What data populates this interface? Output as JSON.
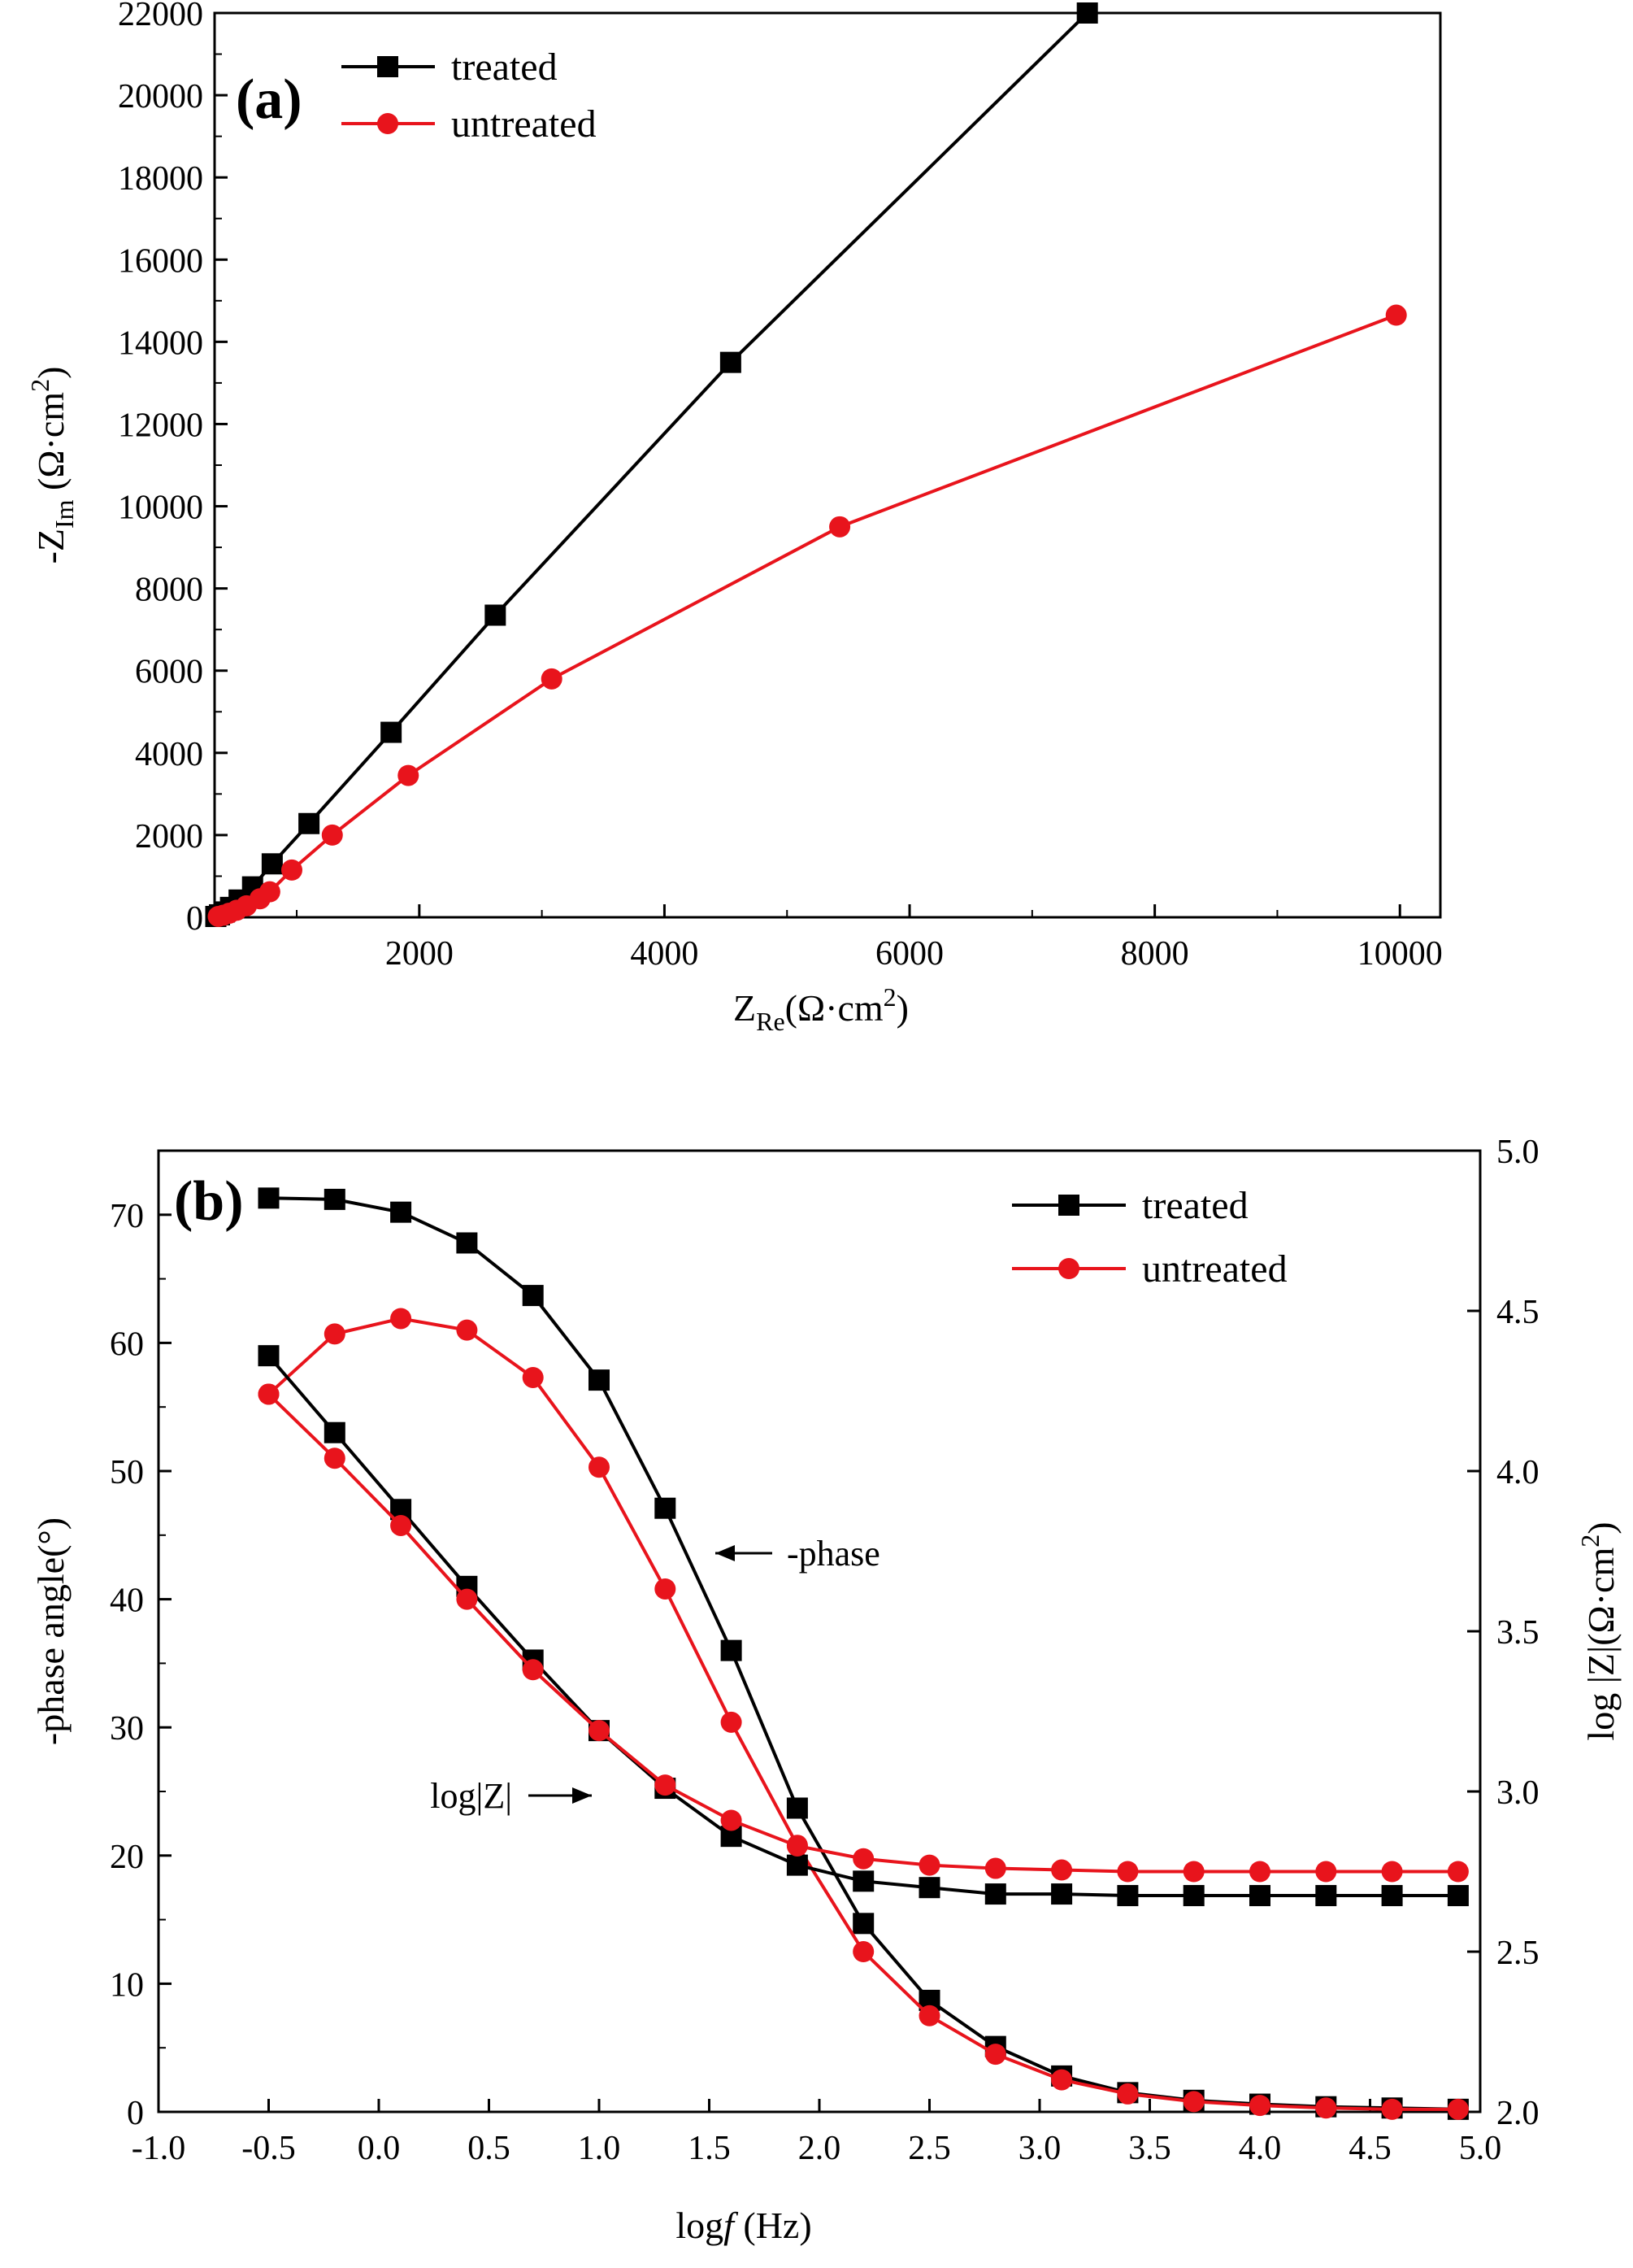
{
  "chart_data": [
    {
      "panel_label": "(a)",
      "type": "line",
      "xlabel_main": "Z",
      "xlabel_sub": "Re",
      "xlabel_unit": "(Ω·cm",
      "xlabel_sup": "2",
      "xlabel_close": ")",
      "ylabel_main": "-Z",
      "ylabel_sub": "Im",
      "ylabel_unit": " (Ω·cm",
      "ylabel_sup": "2",
      "ylabel_close": ")",
      "xlim": [
        330,
        10330
      ],
      "ylim": [
        0,
        22000
      ],
      "xticks": [
        2000,
        4000,
        6000,
        8000,
        10000
      ],
      "xtick_labels": [
        "2000",
        "4000",
        "6000",
        "8000",
        "10000"
      ],
      "yticks": [
        0,
        2000,
        4000,
        6000,
        8000,
        10000,
        12000,
        14000,
        16000,
        18000,
        20000,
        22000
      ],
      "ytick_labels": [
        "0",
        "2000",
        "4000",
        "6000",
        "8000",
        "10000",
        "12000",
        "14000",
        "16000",
        "18000",
        "20000",
        "22000"
      ],
      "legend_position": "top-left",
      "series": [
        {
          "name": "treated",
          "color": "#000000",
          "marker": "square",
          "x": [
            340,
            370,
            410,
            460,
            530,
            640,
            800,
            1100,
            1770,
            2620,
            4540,
            7450
          ],
          "y": [
            20,
            60,
            130,
            240,
            420,
            740,
            1300,
            2280,
            4500,
            7350,
            13500,
            22000
          ]
        },
        {
          "name": "untreated",
          "color": "#e8141c",
          "marker": "circle",
          "x": [
            360,
            400,
            450,
            510,
            590,
            700,
            780,
            960,
            1290,
            1910,
            3080,
            5430,
            9970
          ],
          "y": [
            20,
            50,
            100,
            170,
            280,
            450,
            620,
            1150,
            2000,
            3450,
            5800,
            9500,
            14650
          ]
        }
      ]
    },
    {
      "panel_label": "(b)",
      "type": "line",
      "xlabel_main": "log",
      "xlabel_italic": "f",
      "xlabel_unit": " (Hz)",
      "ylabel": "-phase angle(°)",
      "y2label_main": "log |Z|(Ω·cm",
      "y2label_sup": "2",
      "y2label_close": ")",
      "xlim": [
        -1.0,
        5.0
      ],
      "ylim": [
        0,
        75
      ],
      "y2lim": [
        2.0,
        5.0
      ],
      "xticks": [
        -1.0,
        -0.5,
        0.0,
        0.5,
        1.0,
        1.5,
        2.0,
        2.5,
        3.0,
        3.5,
        4.0,
        4.5,
        5.0
      ],
      "xtick_labels": [
        "-1.0",
        "-0.5",
        "0.0",
        "0.5",
        "1.0",
        "1.5",
        "2.0",
        "2.5",
        "3.0",
        "3.5",
        "4.0",
        "4.5",
        "5.0"
      ],
      "yticks": [
        0,
        10,
        20,
        30,
        40,
        50,
        60,
        70
      ],
      "ytick_labels": [
        "0",
        "10",
        "20",
        "30",
        "40",
        "50",
        "60",
        "70"
      ],
      "y2ticks": [
        2.0,
        2.5,
        3.0,
        3.5,
        4.0,
        4.5,
        5.0
      ],
      "y2tick_labels": [
        "2.0",
        "2.5",
        "3.0",
        "3.5",
        "4.0",
        "4.5",
        "5.0"
      ],
      "legend_position": "top-right",
      "annotations": [
        {
          "text": "-phase",
          "x": 1.67,
          "y": 43.3,
          "arrow": "left"
        },
        {
          "text": "log|Z|",
          "x": 1.05,
          "y": 25.1,
          "arrow": "right"
        }
      ],
      "x": [
        -0.5,
        -0.2,
        0.1,
        0.4,
        0.7,
        1.0,
        1.3,
        1.6,
        1.9,
        2.2,
        2.5,
        2.8,
        3.1,
        3.4,
        3.7,
        4.0,
        4.3,
        4.6,
        4.9
      ],
      "series": [
        {
          "name": "treated",
          "quantity": "-phase",
          "axis": "left",
          "color": "#000000",
          "marker": "square",
          "values": [
            71.3,
            71.2,
            70.2,
            67.8,
            63.7,
            57.1,
            47.1,
            36.0,
            23.7,
            14.7,
            8.7,
            5.1,
            2.8,
            1.5,
            0.9,
            0.6,
            0.4,
            0.3,
            0.2
          ]
        },
        {
          "name": "untreated",
          "quantity": "-phase",
          "axis": "left",
          "color": "#e8141c",
          "marker": "circle",
          "values": [
            56.0,
            60.7,
            61.9,
            61.0,
            57.3,
            50.3,
            40.8,
            30.4,
            20.8,
            12.5,
            7.5,
            4.5,
            2.5,
            1.4,
            0.8,
            0.5,
            0.3,
            0.2,
            0.2
          ]
        },
        {
          "name": "treated",
          "quantity": "log|Z|",
          "axis": "right",
          "color": "#000000",
          "marker": "square",
          "values": [
            4.36,
            4.12,
            3.88,
            3.64,
            3.41,
            3.19,
            3.01,
            2.86,
            2.77,
            2.72,
            2.7,
            2.68,
            2.68,
            2.675,
            2.675,
            2.675,
            2.675,
            2.675,
            2.675
          ]
        },
        {
          "name": "untreated",
          "quantity": "log|Z|",
          "axis": "right",
          "color": "#e8141c",
          "marker": "circle",
          "values": [
            4.24,
            4.04,
            3.83,
            3.6,
            3.38,
            3.19,
            3.02,
            2.91,
            2.83,
            2.79,
            2.77,
            2.76,
            2.755,
            2.75,
            2.75,
            2.75,
            2.75,
            2.75,
            2.75
          ]
        }
      ]
    }
  ]
}
